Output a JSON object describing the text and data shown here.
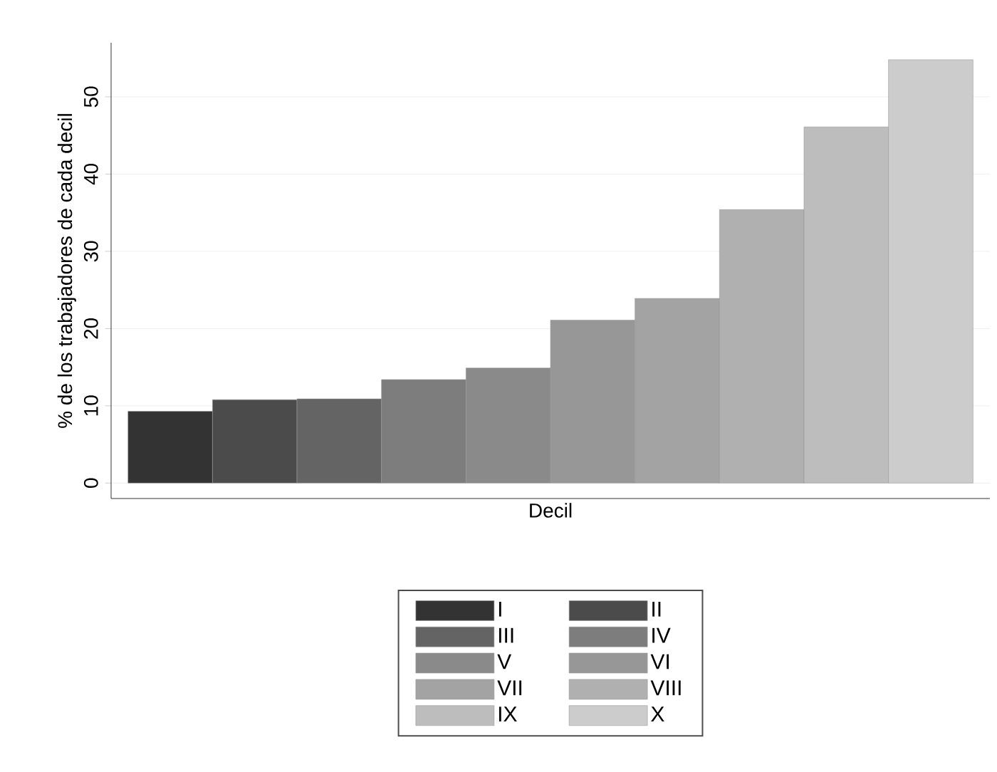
{
  "chart_data": {
    "type": "bar",
    "xlabel": "Decil",
    "ylabel": "% de los trabajadores de cada decil",
    "categories": [
      null
    ],
    "series": [
      {
        "name": "I",
        "color": "#333333",
        "values": [
          9.3
        ]
      },
      {
        "name": "II",
        "color": "#4b4b4b",
        "values": [
          10.8
        ]
      },
      {
        "name": "III",
        "color": "#646464",
        "values": [
          10.9
        ]
      },
      {
        "name": "IV",
        "color": "#7d7d7d",
        "values": [
          13.4
        ]
      },
      {
        "name": "V",
        "color": "#8a8a8a",
        "values": [
          14.9
        ]
      },
      {
        "name": "VI",
        "color": "#979797",
        "values": [
          21.1
        ]
      },
      {
        "name": "VII",
        "color": "#a3a3a3",
        "values": [
          23.9
        ]
      },
      {
        "name": "VIII",
        "color": "#b0b0b0",
        "values": [
          35.4
        ]
      },
      {
        "name": "IX",
        "color": "#bdbdbd",
        "values": [
          46.1
        ]
      },
      {
        "name": "X",
        "color": "#cccccc",
        "values": [
          54.8
        ]
      }
    ],
    "ylim": [
      -2,
      57
    ],
    "yticks": [
      0,
      10,
      20,
      30,
      40,
      50
    ],
    "grid": "y",
    "legend": "bottom"
  }
}
